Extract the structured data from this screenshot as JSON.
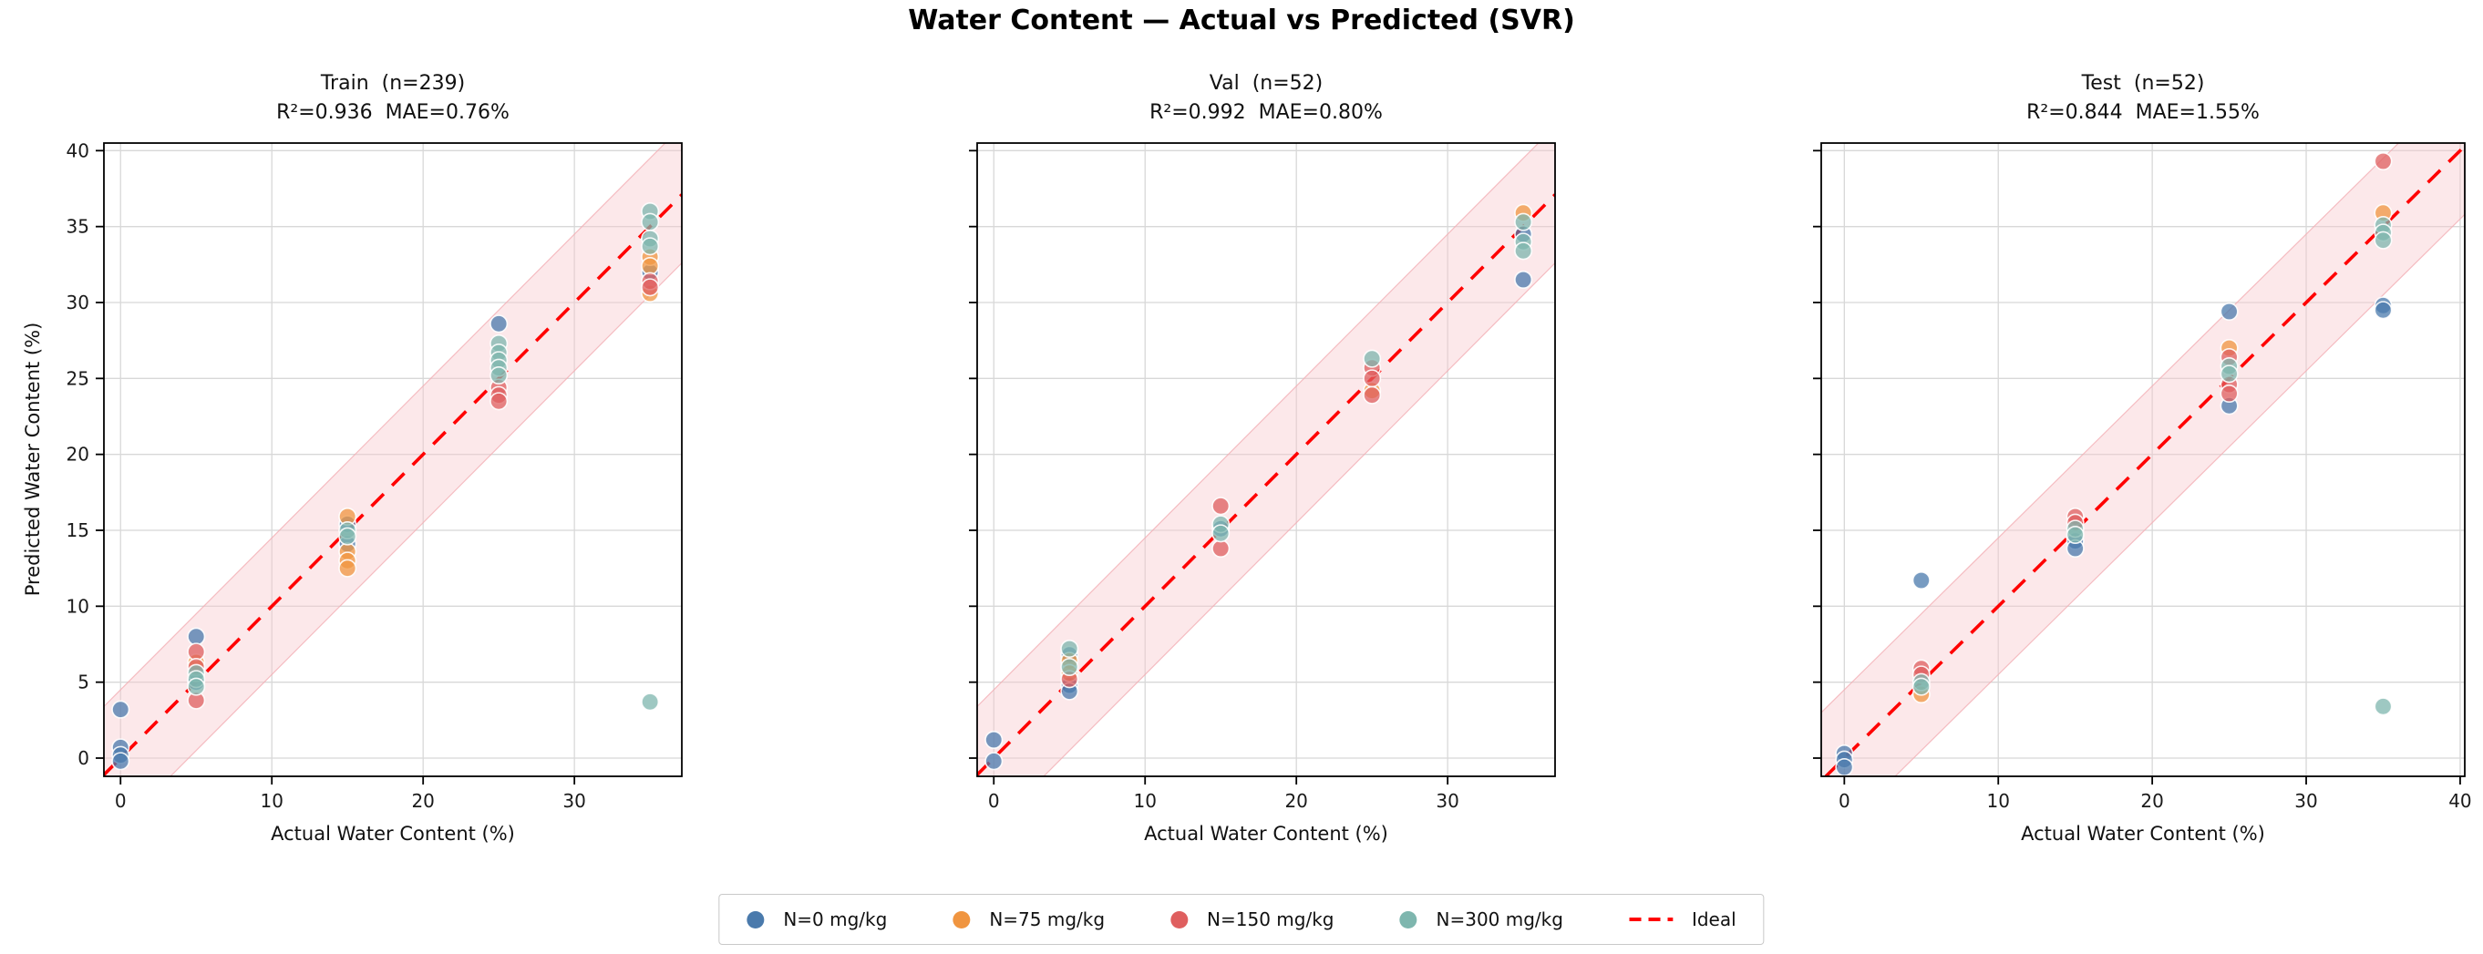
{
  "figure": {
    "title": "Water Content — Actual vs Predicted (SVR)",
    "background": "#ffffff"
  },
  "colors": {
    "N0": "#4A7AAC",
    "N75": "#F09540",
    "N150": "#DF5F5F",
    "N300": "#7EB6AE",
    "ideal": "#FF0000",
    "band_fill": "#F7C9CD",
    "band_edge": "#F2AEB4",
    "grid": "#D8D8D8",
    "spine": "#000000",
    "tick_text": "#1a1a1a"
  },
  "legend": {
    "items": [
      {
        "label": "N=0 mg/kg",
        "color_key": "N0"
      },
      {
        "label": "N=75 mg/kg",
        "color_key": "N75"
      },
      {
        "label": "N=150 mg/kg",
        "color_key": "N150"
      },
      {
        "label": "N=300 mg/kg",
        "color_key": "N300"
      }
    ],
    "ideal_label": "Ideal"
  },
  "chart_data": [
    {
      "type": "scatter",
      "title": "Train  (n=239)",
      "subtitle": "R²=0.936  MAE=0.76%",
      "r2": 0.936,
      "mae_pct": 0.76,
      "xlabel": "Actual Water Content (%)",
      "ylabel": "Predicted Water Content (%)",
      "xlim": [
        -1.1,
        37.1
      ],
      "ylim": [
        -1.2,
        40.5
      ],
      "xticks": [
        0,
        10,
        20,
        30
      ],
      "yticks": [
        0,
        5,
        10,
        15,
        20,
        25,
        30,
        35,
        40
      ],
      "ideal_line": "y = x",
      "band_halfwidth": 4.5,
      "grid": true,
      "series": [
        {
          "name": "N=0 mg/kg",
          "color_key": "N0",
          "points": [
            [
              0,
              3.2
            ],
            [
              0,
              0.7
            ],
            [
              0,
              0.2
            ],
            [
              0,
              -0.2
            ],
            [
              5,
              8.0
            ],
            [
              5,
              5.0
            ],
            [
              15,
              15.4
            ],
            [
              15,
              14.1
            ],
            [
              25,
              28.6
            ],
            [
              35,
              32.0
            ]
          ]
        },
        {
          "name": "N=75 mg/kg",
          "color_key": "N75",
          "points": [
            [
              5,
              6.3
            ],
            [
              15,
              15.9
            ],
            [
              15,
              13.6
            ],
            [
              15,
              13.0
            ],
            [
              15,
              12.5
            ],
            [
              35,
              33.0
            ],
            [
              35,
              32.4
            ],
            [
              35,
              30.6
            ]
          ]
        },
        {
          "name": "N=150 mg/kg",
          "color_key": "N150",
          "points": [
            [
              5,
              7.0
            ],
            [
              5,
              6.0
            ],
            [
              5,
              3.8
            ],
            [
              25,
              24.4
            ],
            [
              25,
              23.9
            ],
            [
              25,
              23.5
            ],
            [
              35,
              31.4
            ],
            [
              35,
              31.0
            ]
          ]
        },
        {
          "name": "N=300 mg/kg",
          "color_key": "N300",
          "points": [
            [
              5,
              5.6
            ],
            [
              5,
              5.2
            ],
            [
              5,
              4.7
            ],
            [
              15,
              15.0
            ],
            [
              15,
              14.6
            ],
            [
              25,
              27.3
            ],
            [
              25,
              26.7
            ],
            [
              25,
              26.2
            ],
            [
              25,
              25.7
            ],
            [
              25,
              25.2
            ],
            [
              35,
              36.0
            ],
            [
              35,
              35.3
            ],
            [
              35,
              34.2
            ],
            [
              35,
              33.7
            ],
            [
              35,
              3.7
            ]
          ]
        }
      ]
    },
    {
      "type": "scatter",
      "title": "Val  (n=52)",
      "subtitle": "R²=0.992  MAE=0.80%",
      "r2": 0.992,
      "mae_pct": 0.8,
      "xlabel": "Actual Water Content (%)",
      "xlim": [
        -1.1,
        37.1
      ],
      "ylim": [
        -1.2,
        40.5
      ],
      "xticks": [
        0,
        10,
        20,
        30
      ],
      "yticks": [
        0,
        5,
        10,
        15,
        20,
        25,
        30,
        35,
        40
      ],
      "ideal_line": "y = x",
      "band_halfwidth": 4.5,
      "grid": true,
      "series": [
        {
          "name": "N=0 mg/kg",
          "color_key": "N0",
          "points": [
            [
              0,
              1.2
            ],
            [
              0,
              -0.2
            ],
            [
              5,
              6.8
            ],
            [
              5,
              4.8
            ],
            [
              5,
              4.4
            ],
            [
              15,
              15.1
            ],
            [
              35,
              34.5
            ],
            [
              35,
              31.5
            ]
          ]
        },
        {
          "name": "N=75 mg/kg",
          "color_key": "N75",
          "points": [
            [
              5,
              6.4
            ],
            [
              5,
              5.6
            ],
            [
              25,
              24.2
            ],
            [
              35,
              35.9
            ]
          ]
        },
        {
          "name": "N=150 mg/kg",
          "color_key": "N150",
          "points": [
            [
              5,
              5.2
            ],
            [
              15,
              16.6
            ],
            [
              15,
              13.8
            ],
            [
              25,
              25.7
            ],
            [
              25,
              25.0
            ],
            [
              25,
              23.9
            ]
          ]
        },
        {
          "name": "N=300 mg/kg",
          "color_key": "N300",
          "points": [
            [
              5,
              7.2
            ],
            [
              5,
              6.0
            ],
            [
              15,
              15.4
            ],
            [
              15,
              14.8
            ],
            [
              25,
              26.3
            ],
            [
              35,
              35.3
            ],
            [
              35,
              34.0
            ],
            [
              35,
              33.4
            ]
          ]
        }
      ]
    },
    {
      "type": "scatter",
      "title": "Test  (n=52)",
      "subtitle": "R²=0.844  MAE=1.55%",
      "r2": 0.844,
      "mae_pct": 1.55,
      "xlabel": "Actual Water Content (%)",
      "xlim": [
        -1.5,
        40.3
      ],
      "ylim": [
        -1.2,
        40.5
      ],
      "xticks": [
        0,
        10,
        20,
        30,
        40
      ],
      "yticks": [
        0,
        5,
        10,
        15,
        20,
        25,
        30,
        35,
        40
      ],
      "ideal_line": "y = x",
      "band_halfwidth": 4.5,
      "grid": true,
      "series": [
        {
          "name": "N=0 mg/kg",
          "color_key": "N0",
          "points": [
            [
              0,
              0.3
            ],
            [
              0,
              -0.1
            ],
            [
              0,
              -0.6
            ],
            [
              5,
              11.7
            ],
            [
              15,
              14.3
            ],
            [
              15,
              13.8
            ],
            [
              25,
              29.4
            ],
            [
              25,
              23.2
            ],
            [
              35,
              29.8
            ],
            [
              35,
              29.5
            ]
          ]
        },
        {
          "name": "N=75 mg/kg",
          "color_key": "N75",
          "points": [
            [
              5,
              4.2
            ],
            [
              25,
              27.0
            ],
            [
              35,
              35.9
            ]
          ]
        },
        {
          "name": "N=150 mg/kg",
          "color_key": "N150",
          "points": [
            [
              5,
              5.9
            ],
            [
              5,
              5.5
            ],
            [
              15,
              15.9
            ],
            [
              15,
              15.5
            ],
            [
              25,
              26.4
            ],
            [
              25,
              24.6
            ],
            [
              25,
              24.0
            ],
            [
              35,
              39.3
            ]
          ]
        },
        {
          "name": "N=300 mg/kg",
          "color_key": "N300",
          "points": [
            [
              5,
              5.0
            ],
            [
              5,
              4.7
            ],
            [
              15,
              15.1
            ],
            [
              15,
              14.7
            ],
            [
              25,
              25.8
            ],
            [
              25,
              25.3
            ],
            [
              35,
              35.1
            ],
            [
              35,
              34.6
            ],
            [
              35,
              34.1
            ],
            [
              35,
              3.4
            ]
          ]
        }
      ]
    }
  ]
}
